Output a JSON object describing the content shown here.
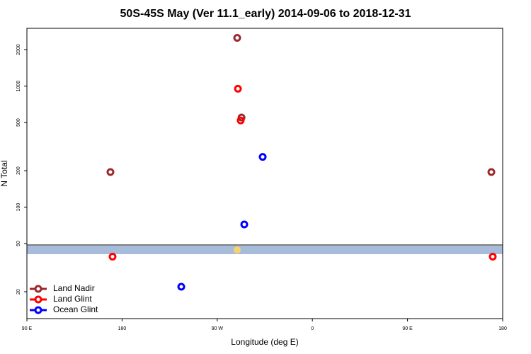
{
  "chart_data": {
    "type": "scatter",
    "title": "50S-45S May (Ver 11.1_early)   2014-09-06 to 2018-12-31",
    "x_label": "Longitude (deg E)",
    "y_label": "N Total",
    "xlim": [
      90,
      540
    ],
    "ylim": [
      12,
      3000
    ],
    "y_scale": "log",
    "xticks": [
      {
        "value": 90,
        "label": "90 E"
      },
      180,
      {
        "value": 270,
        "label": "90 W"
      },
      {
        "value": 360,
        "label": "0"
      },
      {
        "value": 450,
        "label": "90 E"
      },
      {
        "value": 540,
        "label": "180"
      }
    ],
    "yticks": [
      20,
      50,
      100,
      200,
      500,
      1000,
      2000
    ],
    "legend": "bottom-left",
    "series": [
      {
        "name": "Land Nadir",
        "color": "#9b2a2c",
        "x": [
          288.9,
          293,
          169,
          529.3
        ],
        "values": [
          2500,
          550,
          195,
          195
        ]
      },
      {
        "name": "Land Glint",
        "color": "#ff0000",
        "x": [
          289.6,
          292.2,
          171,
          530.6
        ],
        "values": [
          950,
          520,
          39,
          39
        ]
      },
      {
        "name": "Ocean Glint",
        "color": "#0000ff",
        "x": [
          313,
          295.6,
          236
        ],
        "values": [
          260,
          72,
          22
        ]
      }
    ]
  }
}
